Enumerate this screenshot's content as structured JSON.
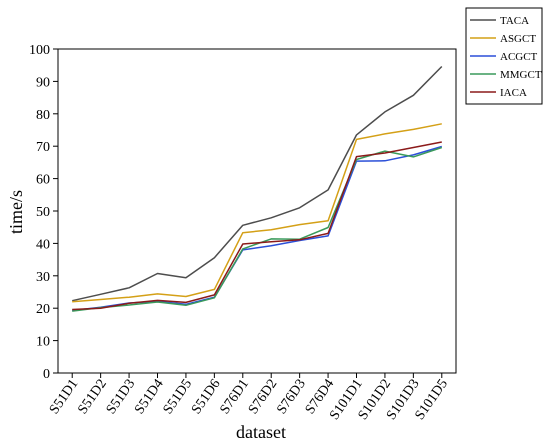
{
  "chart_data": {
    "type": "line",
    "xlabel": "dataset",
    "ylabel": "time/s",
    "ylim": [
      0,
      100
    ],
    "yticks": [
      0,
      10,
      20,
      30,
      40,
      50,
      60,
      70,
      80,
      90,
      100
    ],
    "grid": false,
    "legend_position": "top-right",
    "categories": [
      "S51D1",
      "S51D2",
      "S51D3",
      "S51D4",
      "S51D5",
      "S51D6",
      "S76D1",
      "S76D2",
      "S76D3",
      "S76D4",
      "S101D1",
      "S101D2",
      "S101D3",
      "S101D5"
    ],
    "series": [
      {
        "name": "TACA",
        "color": "#4d4d4d",
        "values": [
          22.3,
          24.3,
          26.3,
          30.7,
          29.4,
          35.6,
          45.6,
          47.9,
          51.0,
          56.5,
          73.5,
          80.6,
          85.7,
          94.6
        ]
      },
      {
        "name": "ASGCT",
        "color": "#d4a017",
        "values": [
          22.0,
          22.7,
          23.4,
          24.4,
          23.6,
          25.8,
          43.3,
          44.2,
          45.8,
          47.0,
          72.1,
          73.8,
          75.2,
          76.9
        ]
      },
      {
        "name": "ACGCT",
        "color": "#2b4fd8",
        "values": [
          19.3,
          20.3,
          21.6,
          22.1,
          21.2,
          23.4,
          38.0,
          39.3,
          40.9,
          42.3,
          65.4,
          65.5,
          67.3,
          69.9
        ]
      },
      {
        "name": "MMGCT",
        "color": "#3a9a5b",
        "values": [
          19.1,
          20.2,
          21.0,
          21.9,
          20.9,
          23.2,
          38.3,
          41.4,
          41.3,
          44.9,
          65.9,
          68.5,
          66.7,
          69.6
        ]
      },
      {
        "name": "IACA",
        "color": "#8b1a1a",
        "values": [
          19.6,
          20.0,
          21.5,
          22.4,
          21.8,
          24.1,
          39.8,
          40.5,
          41.1,
          43.1,
          66.8,
          67.9,
          69.6,
          71.3
        ]
      }
    ]
  }
}
